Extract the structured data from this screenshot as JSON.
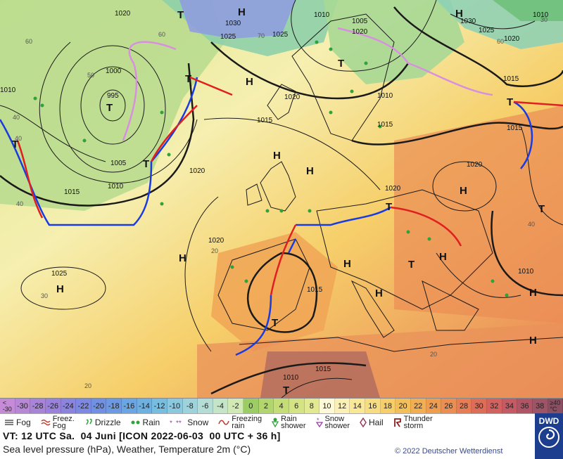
{
  "map": {
    "pressure_labels": [
      "1020",
      "1030",
      "1025",
      "1010",
      "1005",
      "1020",
      "1030",
      "1025",
      "1020",
      "1010",
      "1000",
      "995",
      "1005",
      "1010",
      "1015",
      "1020",
      "1025",
      "1020",
      "1010",
      "1015",
      "1020",
      "1025",
      "1015",
      "1015",
      "1010",
      "1015",
      "1015",
      "1010",
      "1010",
      "1015",
      "1020",
      "1020"
    ],
    "temp_labels": [
      "60",
      "60",
      "70",
      "60",
      "40",
      "50",
      "40",
      "40",
      "30",
      "20",
      "20",
      "30",
      "40",
      "20"
    ],
    "pressure_centers": [
      "H",
      "T",
      "T",
      "T",
      "H",
      "H",
      "T",
      "T",
      "H",
      "H",
      "H",
      "T",
      "H",
      "H",
      "H",
      "T",
      "T",
      "H",
      "H",
      "T",
      "T",
      "H",
      "T",
      "T",
      "H"
    ]
  },
  "scale": {
    "labels": [
      "<\n-30",
      "-30",
      "-28",
      "-26",
      "-24",
      "-22",
      "-20",
      "-18",
      "-16",
      "-14",
      "-12",
      "-10",
      "-8",
      "-6",
      "-4",
      "-2",
      "0",
      "2",
      "4",
      "6",
      "8",
      "10",
      "12",
      "14",
      "16",
      "18",
      "20",
      "22",
      "24",
      "26",
      "28",
      "30",
      "32",
      "34",
      "36",
      "38",
      "≥40\n°C"
    ],
    "colors": [
      "#c58bd6",
      "#b887d8",
      "#a884d9",
      "#9a82dc",
      "#8b84df",
      "#7d89e1",
      "#7091e3",
      "#6b9ae3",
      "#6aa5e4",
      "#6db0e2",
      "#77bde0",
      "#8ac9df",
      "#9fd3dc",
      "#b3ddd5",
      "#c5e5c8",
      "#d1eab5",
      "#9ccc64",
      "#b2d66d",
      "#c4dd77",
      "#d4e383",
      "#e2e991",
      "#fff9d8",
      "#fbf0b5",
      "#fae898",
      "#f8dd80",
      "#f6cf6a",
      "#f3bf5a",
      "#f1ae52",
      "#ee9d50",
      "#ec8e52",
      "#e77d55",
      "#de6d58",
      "#d3625e",
      "#c45a63",
      "#b15466",
      "#9c5466",
      "#8a4f63"
    ]
  },
  "legend": {
    "fog": "Fog",
    "freezing_fog": "Freez.\nFog",
    "drizzle": "Drizzle",
    "rain": "Rain",
    "snow": "Snow",
    "freezing_rain": "Freezing\nrain",
    "rain_shower": "Rain\nshower",
    "snow_shower": "Snow\nshower",
    "hail": "Hail",
    "thunderstorm": "Thunder\nstorm"
  },
  "info": {
    "valid_time": "VT: 12 UTC Sa.  04 Juni [ICON 2022-06-03  00 UTC + 36 h]",
    "description": "Sea level pressure (hPa), Weather, Temperature 2m (°C)",
    "copyright": "© 2022 Deutscher Wetterdienst"
  },
  "logo": {
    "text": "DWD"
  }
}
